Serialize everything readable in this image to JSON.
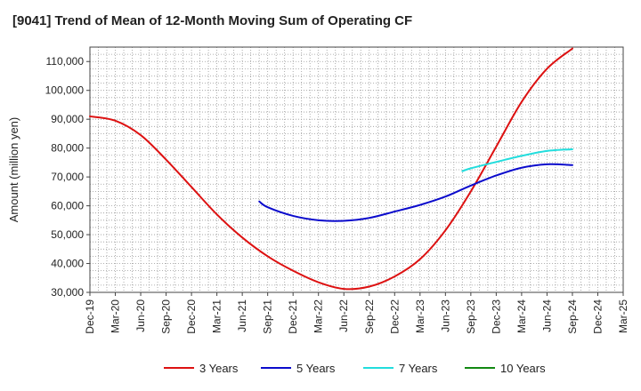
{
  "chart_data": {
    "type": "line",
    "title": "[9041]  Trend of Mean of 12-Month Moving Sum of Operating CF",
    "ylabel": "Amount (million yen)",
    "xlabel": "",
    "ylim": [
      30000,
      115000
    ],
    "yticks": [
      30000,
      40000,
      50000,
      60000,
      70000,
      80000,
      90000,
      100000,
      110000
    ],
    "ytick_labels": [
      "30,000",
      "40,000",
      "50,000",
      "60,000",
      "70,000",
      "80,000",
      "90,000",
      "100,000",
      "110,000"
    ],
    "x_categories": [
      "Dec-19",
      "Mar-20",
      "Jun-20",
      "Sep-20",
      "Dec-20",
      "Mar-21",
      "Jun-21",
      "Sep-21",
      "Dec-21",
      "Mar-22",
      "Jun-22",
      "Sep-22",
      "Dec-22",
      "Mar-23",
      "Jun-23",
      "Sep-23",
      "Dec-23",
      "Mar-24",
      "Jun-24",
      "Sep-24",
      "Dec-24",
      "Mar-25"
    ],
    "grid": true,
    "legend_position": "bottom",
    "series": [
      {
        "name": "3 Years",
        "color": "#dd1111",
        "points": [
          [
            0,
            91000
          ],
          [
            1,
            89500
          ],
          [
            2,
            84500
          ],
          [
            3,
            76000
          ],
          [
            4,
            66500
          ],
          [
            5,
            57000
          ],
          [
            6,
            49000
          ],
          [
            7,
            42500
          ],
          [
            8,
            37500
          ],
          [
            9,
            33500
          ],
          [
            10,
            31200
          ],
          [
            11,
            32000
          ],
          [
            12,
            35500
          ],
          [
            13,
            41500
          ],
          [
            14,
            51500
          ],
          [
            15,
            65000
          ],
          [
            16,
            80500
          ],
          [
            17,
            96000
          ],
          [
            18,
            107500
          ],
          [
            19,
            114500
          ]
        ]
      },
      {
        "name": "5 Years",
        "color": "#0b0bcc",
        "points": [
          [
            6.67,
            61500
          ],
          [
            7,
            59500
          ],
          [
            8,
            56500
          ],
          [
            9,
            55000
          ],
          [
            10,
            54800
          ],
          [
            11,
            55800
          ],
          [
            12,
            58000
          ],
          [
            13,
            60300
          ],
          [
            14,
            63200
          ],
          [
            15,
            67000
          ],
          [
            16,
            70500
          ],
          [
            17,
            73200
          ],
          [
            18,
            74400
          ],
          [
            19,
            74100
          ]
        ]
      },
      {
        "name": "7 Years",
        "color": "#22dddd",
        "points": [
          [
            14.67,
            72000
          ],
          [
            15,
            73000
          ],
          [
            16,
            75200
          ],
          [
            17,
            77300
          ],
          [
            18,
            79000
          ],
          [
            19,
            79600
          ]
        ]
      },
      {
        "name": "10 Years",
        "color": "#118811",
        "points": []
      }
    ]
  }
}
